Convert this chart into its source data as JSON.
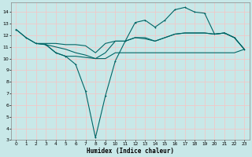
{
  "xlabel": "Humidex (Indice chaleur)",
  "bg_color": "#c8e8e8",
  "grid_color": "#f0c8c8",
  "line_color": "#006666",
  "xlim": [
    -0.5,
    23.5
  ],
  "ylim": [
    3,
    14.8
  ],
  "yticks": [
    3,
    4,
    5,
    6,
    7,
    8,
    9,
    10,
    11,
    12,
    13,
    14
  ],
  "xticks": [
    0,
    1,
    2,
    3,
    4,
    5,
    6,
    7,
    8,
    9,
    10,
    11,
    12,
    13,
    14,
    15,
    16,
    17,
    18,
    19,
    20,
    21,
    22,
    23
  ],
  "line1_x": [
    0,
    1,
    2,
    3,
    4,
    5,
    6,
    7,
    8,
    9,
    10,
    11,
    12,
    13,
    14,
    15,
    16,
    17,
    18,
    19,
    20,
    21,
    22,
    23
  ],
  "line1_y": [
    12.5,
    11.8,
    11.3,
    11.2,
    10.5,
    10.2,
    9.5,
    7.2,
    3.2,
    6.8,
    9.8,
    11.5,
    13.1,
    13.3,
    12.7,
    13.3,
    14.2,
    14.4,
    14.0,
    13.9,
    12.1,
    12.2,
    11.8,
    10.8
  ],
  "line2_x": [
    0,
    1,
    2,
    3,
    4,
    5,
    6,
    7,
    8,
    9,
    10,
    11,
    12,
    13,
    14,
    15,
    16,
    17,
    18,
    19,
    20,
    21,
    22,
    23
  ],
  "line2_y": [
    12.5,
    11.8,
    11.3,
    11.3,
    11.3,
    11.2,
    11.2,
    11.1,
    10.5,
    11.3,
    11.5,
    11.5,
    11.8,
    11.7,
    11.5,
    11.8,
    12.1,
    12.2,
    12.2,
    12.2,
    12.1,
    12.2,
    11.8,
    10.8
  ],
  "line3_x": [
    2,
    3,
    4,
    5,
    6,
    7,
    8,
    9,
    10,
    11,
    12,
    13,
    14,
    15,
    16,
    17,
    18,
    19,
    20,
    21,
    22,
    23
  ],
  "line3_y": [
    11.3,
    11.2,
    10.5,
    10.2,
    10.2,
    10.1,
    10.0,
    10.0,
    10.5,
    10.5,
    10.5,
    10.5,
    10.5,
    10.5,
    10.5,
    10.5,
    10.5,
    10.5,
    10.5,
    10.5,
    10.5,
    10.8
  ],
  "line4_x": [
    3,
    4,
    5,
    6,
    7,
    8,
    9,
    10,
    11,
    12,
    13,
    14,
    15,
    16,
    17,
    18,
    19,
    20,
    21,
    22,
    23
  ],
  "line4_y": [
    11.2,
    11.0,
    10.8,
    10.5,
    10.3,
    10.0,
    10.5,
    11.5,
    11.5,
    11.8,
    11.8,
    11.5,
    11.8,
    12.1,
    12.2,
    12.2,
    12.2,
    12.1,
    12.2,
    11.8,
    10.8
  ]
}
